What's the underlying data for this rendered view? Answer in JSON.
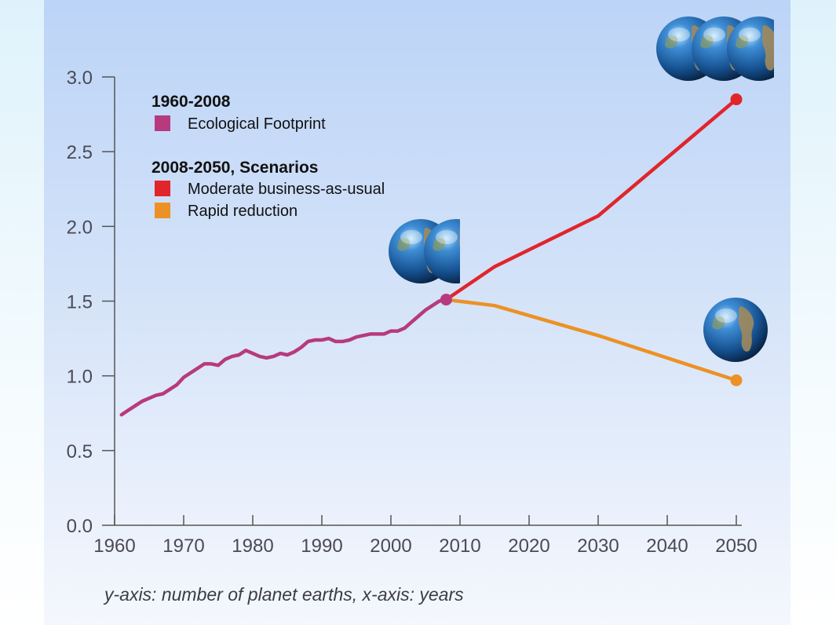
{
  "caption": "y-axis: number of planet earths, x-axis: years",
  "legend": {
    "group1_title": "1960-2008",
    "group2_title": "2008-2050, Scenarios"
  },
  "chart_data": {
    "type": "line",
    "xlim": [
      1960,
      2050
    ],
    "ylim": [
      0,
      3
    ],
    "x_ticks": [
      "1960",
      "1970",
      "1980",
      "1990",
      "2000",
      "2010",
      "2020",
      "2030",
      "2040",
      "2050"
    ],
    "y_ticks": [
      "0.0",
      "0.5",
      "1.0",
      "1.5",
      "2.0",
      "2.5",
      "3.0"
    ],
    "legend_position": "top-left",
    "grid": false,
    "series": [
      {
        "name": "Ecological Footprint",
        "color": "#b73a7e",
        "x": [
          1961,
          1962,
          1963,
          1964,
          1965,
          1966,
          1967,
          1968,
          1969,
          1970,
          1971,
          1972,
          1973,
          1974,
          1975,
          1976,
          1977,
          1978,
          1979,
          1980,
          1981,
          1982,
          1983,
          1984,
          1985,
          1986,
          1987,
          1988,
          1989,
          1990,
          1991,
          1992,
          1993,
          1994,
          1995,
          1996,
          1997,
          1998,
          1999,
          2000,
          2001,
          2002,
          2003,
          2004,
          2005,
          2006,
          2007,
          2008
        ],
        "values": [
          0.74,
          0.77,
          0.8,
          0.83,
          0.85,
          0.87,
          0.88,
          0.91,
          0.94,
          0.99,
          1.02,
          1.05,
          1.08,
          1.08,
          1.07,
          1.11,
          1.13,
          1.14,
          1.17,
          1.15,
          1.13,
          1.12,
          1.13,
          1.15,
          1.14,
          1.16,
          1.19,
          1.23,
          1.24,
          1.24,
          1.25,
          1.23,
          1.23,
          1.24,
          1.26,
          1.27,
          1.28,
          1.28,
          1.28,
          1.3,
          1.3,
          1.32,
          1.36,
          1.4,
          1.44,
          1.47,
          1.5,
          1.51
        ],
        "end_marker": true
      },
      {
        "name": "Moderate business-as-usual",
        "color": "#e1252b",
        "x": [
          2008,
          2015,
          2030,
          2050
        ],
        "values": [
          1.51,
          1.73,
          2.07,
          2.85
        ],
        "end_marker": true
      },
      {
        "name": "Rapid reduction",
        "color": "#ec9125",
        "x": [
          2008,
          2015,
          2030,
          2050
        ],
        "values": [
          1.51,
          1.47,
          1.27,
          0.97
        ],
        "end_marker": true
      }
    ],
    "earth_icons": [
      {
        "at_year": 2008,
        "count": 2
      },
      {
        "at_year": 2050,
        "count": 3
      },
      {
        "at_year": 2050,
        "count": 1
      }
    ]
  }
}
